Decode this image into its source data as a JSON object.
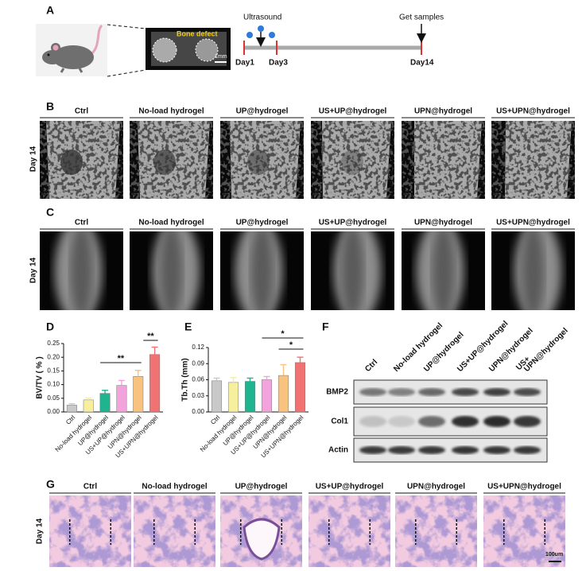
{
  "panel_labels": [
    "A",
    "B",
    "C",
    "D",
    "E",
    "F",
    "G"
  ],
  "panel_a": {
    "image_label": "Bone defect",
    "scale": "1mm",
    "stimulus": "Ultrasound",
    "endpoint": "Get samples",
    "days": [
      "Day1",
      "Day3",
      "Day14"
    ]
  },
  "groups": [
    "Ctrl",
    "No-load hydrogel",
    "UP@hydrogel",
    "US+UP@hydrogel",
    "UPN@hydrogel",
    "US+UPN@hydrogel"
  ],
  "row_label": "Day 14",
  "scale_g": "100um",
  "blot": {
    "lanes": [
      [
        "Ctrl"
      ],
      [
        "No-load hydrogel"
      ],
      [
        "UP@hydrogel"
      ],
      [
        "US+UP@hydrogel"
      ],
      [
        "UPN@hydrogel"
      ],
      [
        "US+",
        "UPN@hydrogel"
      ]
    ],
    "rows": [
      "BMP2",
      "Col1",
      "Actin"
    ]
  },
  "chart_data": [
    {
      "type": "bar",
      "y_label": "BV/TV ( % )",
      "categories": [
        "Ctrl",
        "No-load hydrogel",
        "UP@hydrogel",
        "US+UP@hydrogel",
        "UPN@hydrogel",
        "US+UPN@hydrogel"
      ],
      "values": [
        0.025,
        0.044,
        0.068,
        0.097,
        0.13,
        0.21
      ],
      "errors": [
        0.005,
        0.007,
        0.011,
        0.018,
        0.022,
        0.027
      ],
      "colors": [
        "#c9c9c9",
        "#f5ef9e",
        "#1fb38e",
        "#f2a3dc",
        "#f8c27f",
        "#f07272"
      ],
      "ylim": [
        0,
        0.25
      ],
      "yticks": [
        {
          "value": 0,
          "label": "0.00"
        },
        {
          "value": 0.05,
          "label": "0.05"
        },
        {
          "value": 0.1,
          "label": "0.10"
        },
        {
          "value": 0.15,
          "label": "0.15"
        },
        {
          "value": 0.2,
          "label": "0.20"
        },
        {
          "value": 0.25,
          "label": "0.25"
        }
      ],
      "annotations": [
        "**",
        "**"
      ]
    },
    {
      "type": "bar",
      "y_label": "Tb.Th (mm)",
      "categories": [
        "Ctrl",
        "No-load hydrogel",
        "UP@hydrogel",
        "US+UP@hydrogel",
        "UPN@hydrogel",
        "US+UPN@hydrogel"
      ],
      "values": [
        0.058,
        0.055,
        0.057,
        0.06,
        0.068,
        0.092
      ],
      "errors": [
        0.005,
        0.009,
        0.006,
        0.006,
        0.02,
        0.01
      ],
      "colors": [
        "#c9c9c9",
        "#f5ef9e",
        "#1fb38e",
        "#f2a3dc",
        "#f8c27f",
        "#f07272"
      ],
      "ylim": [
        0,
        0.12
      ],
      "yticks": [
        {
          "value": 0,
          "label": "0.00"
        },
        {
          "value": 0.03,
          "label": "0.03"
        },
        {
          "value": 0.06,
          "label": "0.06"
        },
        {
          "value": 0.09,
          "label": "0.09"
        },
        {
          "value": 0.12,
          "label": "0.12"
        }
      ],
      "annotations": [
        "*",
        "*"
      ]
    }
  ]
}
